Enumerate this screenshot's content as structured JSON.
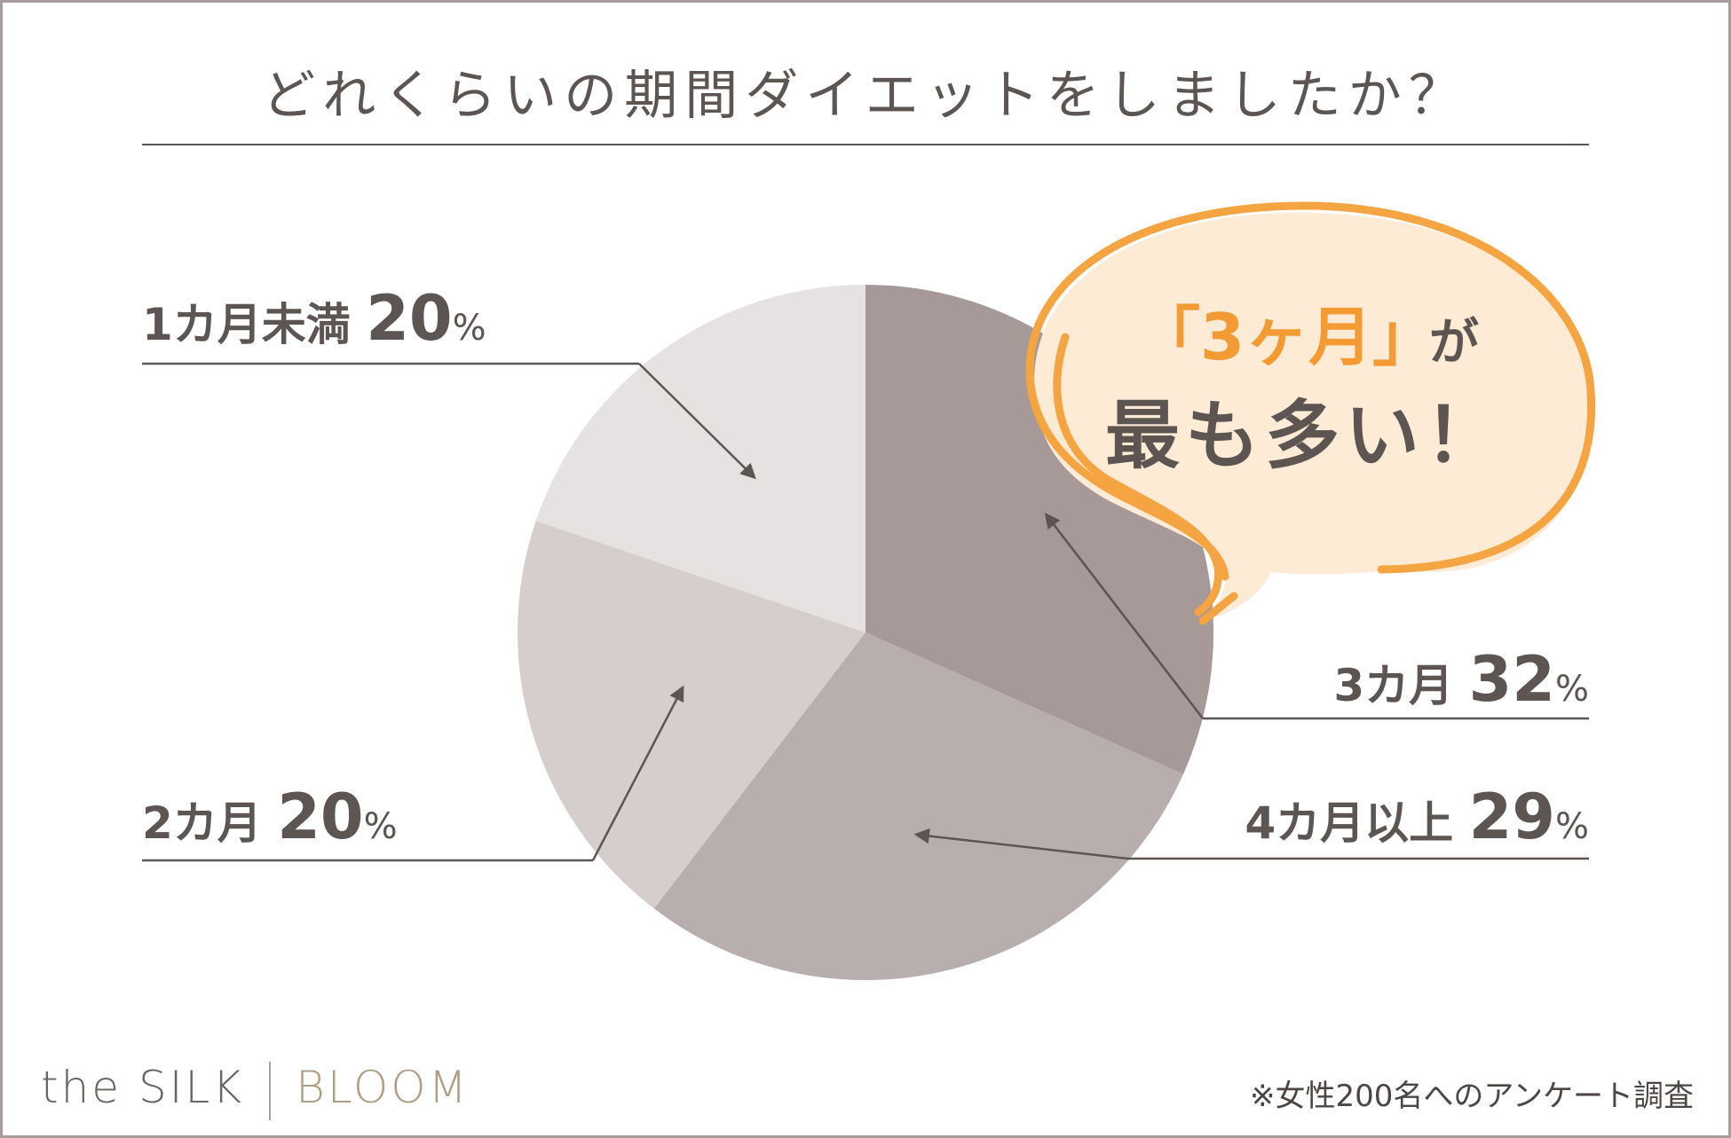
{
  "title": "どれくらいの期間ダイエットをしましたか？",
  "chart_data": {
    "type": "pie",
    "title": "どれくらいの期間ダイエットをしましたか？",
    "start": "12 o'clock, clockwise",
    "slices": [
      {
        "label": "3カ月",
        "value": 32,
        "unit": "%",
        "color": "#a69998"
      },
      {
        "label": "4カ月以上",
        "value": 29,
        "unit": "%",
        "color": "#b8aeae"
      },
      {
        "label": "2カ月",
        "value": 20,
        "unit": "%",
        "color": "#d5cecd"
      },
      {
        "label": "1カ月未満",
        "value": 20,
        "unit": "%",
        "color": "#e5e2e1"
      }
    ]
  },
  "callout": {
    "line1_highlight": "「3ヶ月」",
    "line1_rest": "が",
    "line2": "最も多い！",
    "fill_color": "#fdebd6",
    "stroke_color": "#f5a442",
    "text_color": "#5d5551",
    "highlight_color": "#f39a33"
  },
  "footer": {
    "note": "※女性200名へのアンケート調査",
    "brand_left": "the SILK",
    "brand_right": "BLOOM"
  }
}
